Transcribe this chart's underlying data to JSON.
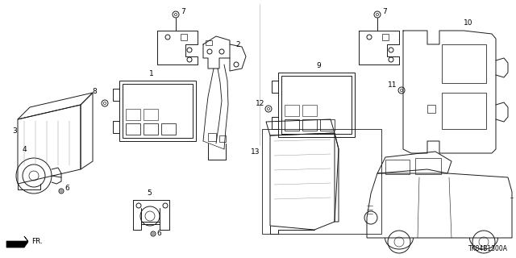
{
  "background_color": "#ffffff",
  "line_color": "#1a1a1a",
  "text_color": "#000000",
  "diagram_code": "TK84B1300A",
  "figsize": [
    6.4,
    3.2
  ],
  "dpi": 100
}
